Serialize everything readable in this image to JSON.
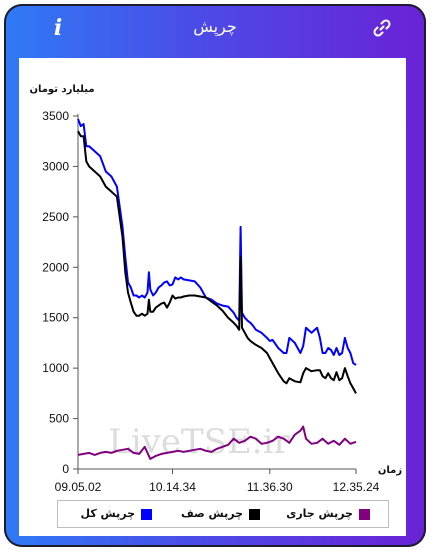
{
  "header": {
    "title": "چرپش",
    "info_label": "i"
  },
  "colors": {
    "accent_start": "#2f7bf5",
    "accent_end": "#6a22d6",
    "total": "#0000ff",
    "queue": "#000000",
    "current": "#800080"
  },
  "icons": {
    "info": "info-icon",
    "link": "link-icon"
  },
  "watermark": "LiveTSE.ir",
  "chart_data": {
    "type": "line",
    "ylabel": "میلیارد تومان",
    "xlabel": "زمان",
    "ylim": [
      0,
      3500
    ],
    "yticks": [
      0,
      500,
      1000,
      1500,
      2000,
      2500,
      3000,
      3500
    ],
    "xlim": [
      0,
      100
    ],
    "xticks": [
      {
        "pos": 0,
        "label": "09.05.02"
      },
      {
        "pos": 34,
        "label": "10.14.34"
      },
      {
        "pos": 69,
        "label": "11.36.30"
      },
      {
        "pos": 100,
        "label": "12.35.24"
      }
    ],
    "series": [
      {
        "name": "چرپش کل",
        "color": "#0000ff",
        "x": [
          0,
          1,
          2,
          3,
          4,
          6,
          8,
          10,
          12,
          14,
          16,
          17,
          18,
          19,
          20,
          21,
          22,
          23,
          24,
          25,
          25.5,
          26,
          27,
          28,
          29,
          30,
          31,
          32,
          33,
          34,
          35,
          36,
          37,
          38,
          40,
          42,
          44,
          46,
          48,
          50,
          52,
          54,
          56,
          57,
          58,
          58.5,
          59,
          60,
          61,
          62,
          63,
          64,
          66,
          68,
          69,
          70,
          72,
          74,
          75,
          76,
          78,
          80,
          81,
          82,
          84,
          86,
          87,
          88,
          89,
          90,
          91,
          92,
          93,
          94,
          95,
          96,
          97,
          98,
          99,
          100
        ],
        "y": [
          3470,
          3400,
          3420,
          3200,
          3200,
          3150,
          3100,
          2950,
          2900,
          2800,
          2400,
          2100,
          1850,
          1800,
          1720,
          1720,
          1700,
          1720,
          1700,
          1750,
          1950,
          1780,
          1720,
          1750,
          1800,
          1820,
          1850,
          1860,
          1820,
          1830,
          1900,
          1880,
          1900,
          1880,
          1870,
          1860,
          1800,
          1700,
          1680,
          1640,
          1620,
          1610,
          1550,
          1500,
          1470,
          2400,
          1550,
          1500,
          1470,
          1450,
          1420,
          1380,
          1350,
          1300,
          1270,
          1280,
          1200,
          1150,
          1150,
          1300,
          1250,
          1150,
          1220,
          1400,
          1350,
          1400,
          1300,
          1150,
          1150,
          1200,
          1180,
          1130,
          1200,
          1130,
          1150,
          1300,
          1200,
          1150,
          1050,
          1030
        ]
      },
      {
        "name": "چرپش صف",
        "color": "#000000",
        "x": [
          0,
          1,
          2,
          3,
          4,
          6,
          8,
          10,
          12,
          14,
          16,
          17,
          18,
          19,
          20,
          21,
          22,
          23,
          24,
          25,
          25.5,
          26,
          27,
          28,
          29,
          30,
          31,
          32,
          33,
          34,
          35,
          36,
          37,
          38,
          40,
          42,
          44,
          46,
          48,
          50,
          52,
          54,
          56,
          57,
          58,
          58.5,
          59,
          60,
          61,
          62,
          63,
          64,
          66,
          68,
          69,
          70,
          72,
          74,
          75,
          76,
          78,
          80,
          81,
          82,
          84,
          86,
          87,
          88,
          89,
          90,
          91,
          92,
          93,
          94,
          95,
          96,
          97,
          98,
          99,
          100
        ],
        "y": [
          3350,
          3300,
          3300,
          3050,
          3000,
          2950,
          2900,
          2800,
          2750,
          2700,
          2300,
          1950,
          1750,
          1650,
          1560,
          1520,
          1520,
          1540,
          1520,
          1540,
          1680,
          1560,
          1560,
          1600,
          1620,
          1640,
          1650,
          1600,
          1650,
          1720,
          1690,
          1700,
          1700,
          1710,
          1720,
          1720,
          1710,
          1700,
          1660,
          1620,
          1570,
          1500,
          1450,
          1420,
          1380,
          2100,
          1400,
          1350,
          1300,
          1270,
          1250,
          1230,
          1200,
          1150,
          1100,
          1050,
          950,
          870,
          850,
          900,
          870,
          860,
          950,
          1000,
          970,
          980,
          980,
          920,
          900,
          950,
          900,
          880,
          960,
          880,
          900,
          1000,
          920,
          850,
          800,
          750
        ]
      },
      {
        "name": "چرپش جاری",
        "color": "#800080",
        "x": [
          0,
          2,
          4,
          6,
          8,
          10,
          12,
          14,
          16,
          18,
          20,
          22,
          24,
          26,
          28,
          30,
          32,
          34,
          36,
          38,
          40,
          42,
          44,
          46,
          48,
          50,
          52,
          54,
          56,
          58,
          60,
          62,
          64,
          66,
          68,
          70,
          72,
          74,
          76,
          78,
          80,
          81,
          82,
          84,
          86,
          88,
          90,
          92,
          94,
          96,
          98,
          100
        ],
        "y": [
          140,
          150,
          160,
          140,
          160,
          170,
          160,
          180,
          190,
          200,
          160,
          150,
          220,
          100,
          130,
          150,
          160,
          170,
          180,
          170,
          180,
          190,
          200,
          180,
          170,
          200,
          220,
          240,
          300,
          260,
          280,
          320,
          300,
          250,
          260,
          280,
          320,
          300,
          260,
          340,
          380,
          420,
          300,
          250,
          260,
          300,
          250,
          280,
          240,
          300,
          250,
          270
        ]
      }
    ],
    "legend_placement": "bottom"
  }
}
